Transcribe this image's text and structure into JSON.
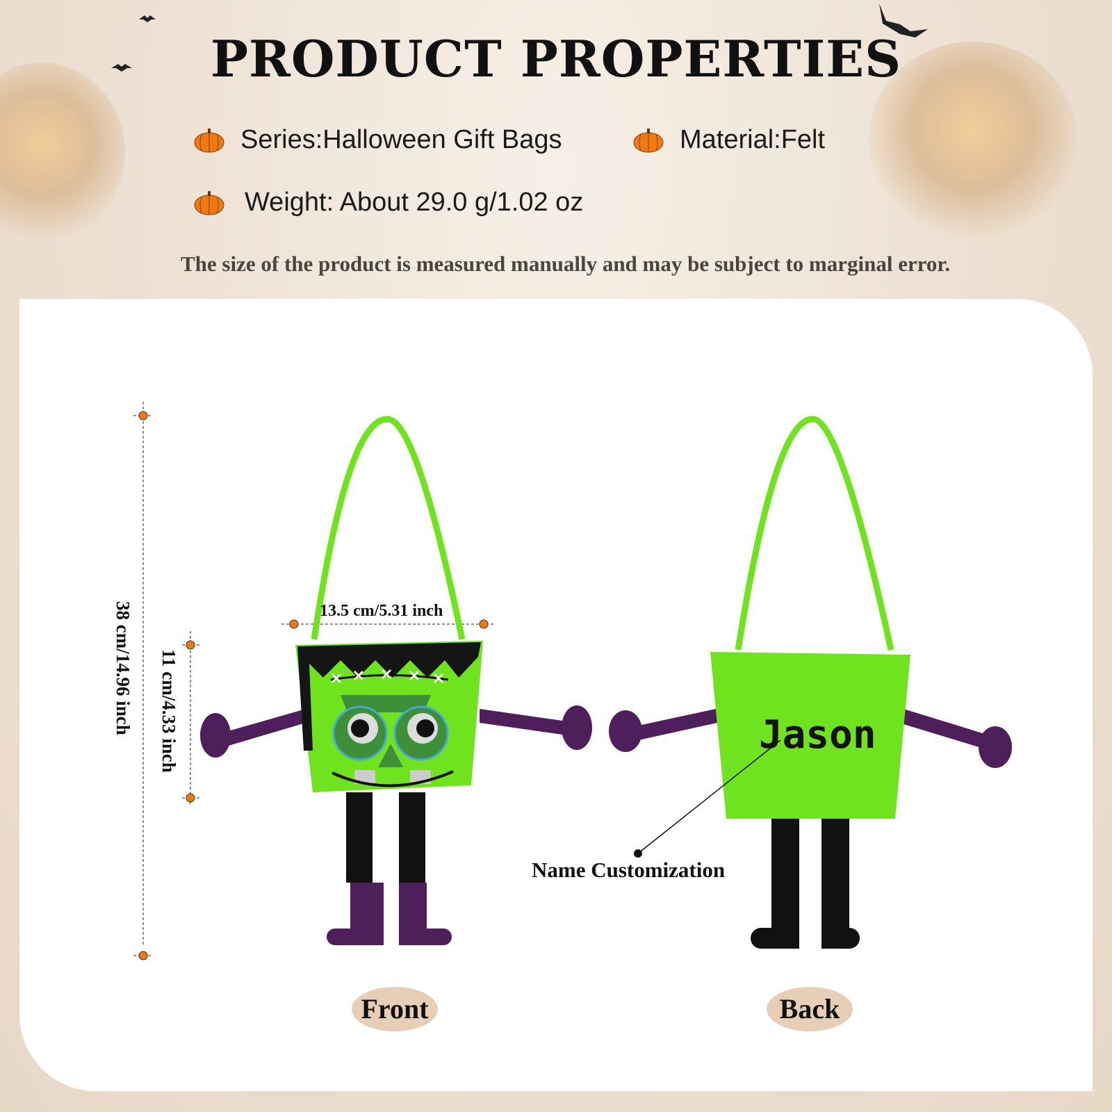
{
  "header": {
    "title": "PRODUCT PROPERTIES"
  },
  "properties": [
    {
      "label": "Series:Halloween Gift Bags",
      "icon": "pumpkin-icon"
    },
    {
      "label": "Material:Felt",
      "icon": "pumpkin-icon"
    },
    {
      "label": "Weight: About 29.0 g/1.02 oz",
      "icon": "pumpkin-icon"
    }
  ],
  "note": "The size of the product is measured manually and may be subject to marginal error.",
  "dimensions": {
    "total_height": "38 cm/14.96 inch",
    "bag_height": "11 cm/4.33 inch",
    "bag_width": "13.5 cm/5.31 inch"
  },
  "customization": {
    "name_text": "Jason",
    "label": "Name Customization"
  },
  "views": {
    "front": "Front",
    "back": "Back"
  },
  "colors": {
    "felt_green": "#6ee31e",
    "purple": "#4e1f5a",
    "marker": "#f07a10",
    "pill": "#e6cfb6"
  }
}
